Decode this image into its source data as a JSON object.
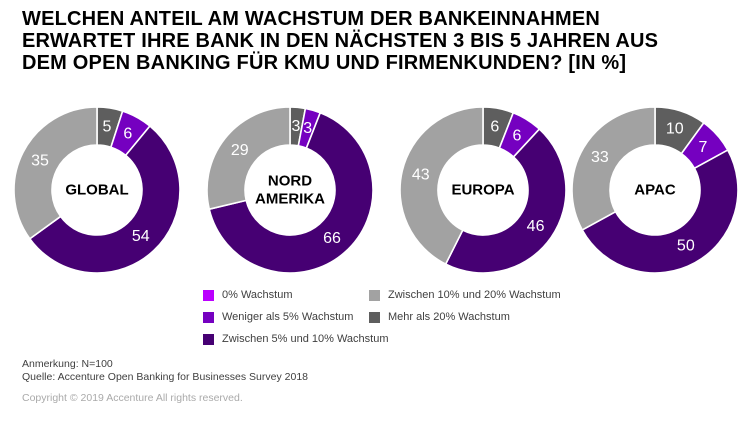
{
  "title_lines": [
    "WELCHEN ANTEIL AM WACHSTUM DER BANKEINNAHMEN",
    "ERWARTET IHRE BANK IN DEN NÄCHSTEN 3 BIS 5 JAHREN AUS",
    "DEM OPEN BANKING FÜR KMU UND FIRMENKUNDEN? [IN %]"
  ],
  "chart_data": {
    "type": "pie",
    "variant": "donut",
    "unit": "%",
    "title": "WELCHEN ANTEIL AM WACHSTUM DER BANKEINNAHMEN ERWARTET IHRE BANK IN DEN NÄCHSTEN 3 BIS 5 JAHREN AUS DEM OPEN BANKING FÜR KMU UND FIRMENKUNDEN? [IN %]",
    "legend_position": "bottom",
    "categories": [
      "0% Wachstum",
      "Weniger als 5% Wachstum",
      "Zwischen 5% und 10% Wachstum",
      "Zwischen 10% und 20% Wachstum",
      "Mehr als 20% Wachstum"
    ],
    "colors": [
      "#bb00ff",
      "#7500c0",
      "#460073",
      "#a2a2a2",
      "#5e5e5e"
    ],
    "slice_draw_order_clockwise_from_top": [
      4,
      0,
      1,
      2,
      3
    ],
    "charts": [
      {
        "name": "GLOBAL",
        "center_lines": [
          "GLOBAL"
        ],
        "values": [
          0,
          6,
          54,
          35,
          5
        ]
      },
      {
        "name": "NORD AMERIKA",
        "center_lines": [
          "NORD",
          "AMERIKA"
        ],
        "values": [
          0,
          3,
          66,
          29,
          3
        ]
      },
      {
        "name": "EUROPA",
        "center_lines": [
          "EUROPA"
        ],
        "values": [
          0,
          6,
          46,
          43,
          6
        ]
      },
      {
        "name": "APAC",
        "center_lines": [
          "APAC"
        ],
        "values": [
          0,
          7,
          50,
          33,
          10
        ]
      }
    ]
  },
  "notes": {
    "anmerkung": "Anmerkung: N=100",
    "quelle": "Quelle: Accenture Open Banking for Businesses Survey 2018"
  },
  "copyright": "Copyright © 2019 Accenture All rights reserved.",
  "style": {
    "slice_label_color": "#ffffff",
    "center_label_color": "#000000",
    "background": "#ffffff"
  }
}
